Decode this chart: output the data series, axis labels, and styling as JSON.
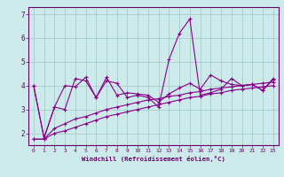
{
  "xlabel": "Windchill (Refroidissement éolien,°C)",
  "bg_color": "#cceaea",
  "grid_color": "#aacccc",
  "line_color": "#880088",
  "x": [
    0,
    1,
    2,
    3,
    4,
    5,
    6,
    7,
    8,
    9,
    10,
    11,
    12,
    13,
    14,
    15,
    16,
    17,
    18,
    19,
    20,
    21,
    22,
    23
  ],
  "series": [
    [
      4.0,
      1.8,
      3.1,
      3.0,
      4.3,
      4.2,
      3.5,
      4.2,
      4.1,
      3.5,
      3.6,
      3.5,
      3.1,
      5.1,
      6.2,
      6.8,
      3.6,
      3.7,
      3.85,
      4.3,
      4.0,
      4.05,
      3.8,
      4.3
    ],
    [
      4.0,
      1.8,
      3.1,
      4.0,
      3.95,
      4.35,
      3.5,
      4.35,
      3.6,
      3.7,
      3.65,
      3.6,
      3.3,
      3.65,
      3.9,
      4.1,
      3.85,
      4.45,
      4.2,
      4.05,
      4.0,
      4.05,
      3.8,
      4.25
    ],
    [
      1.75,
      1.75,
      2.2,
      2.4,
      2.6,
      2.7,
      2.85,
      3.0,
      3.1,
      3.2,
      3.3,
      3.4,
      3.45,
      3.55,
      3.6,
      3.7,
      3.75,
      3.85,
      3.9,
      3.95,
      4.0,
      4.05,
      4.1,
      4.15
    ],
    [
      1.75,
      1.75,
      2.0,
      2.1,
      2.25,
      2.4,
      2.55,
      2.7,
      2.8,
      2.9,
      3.0,
      3.1,
      3.2,
      3.3,
      3.4,
      3.5,
      3.55,
      3.65,
      3.7,
      3.8,
      3.85,
      3.9,
      3.95,
      4.0
    ]
  ],
  "ylim": [
    1.5,
    7.3
  ],
  "xlim": [
    -0.5,
    23.5
  ],
  "yticks": [
    2,
    3,
    4,
    5,
    6,
    7
  ],
  "xticks": [
    0,
    1,
    2,
    3,
    4,
    5,
    6,
    7,
    8,
    9,
    10,
    11,
    12,
    13,
    14,
    15,
    16,
    17,
    18,
    19,
    20,
    21,
    22,
    23
  ],
  "marker": "+",
  "markersize": 3.5,
  "linewidth": 0.8,
  "tick_fontsize": 4.5,
  "xlabel_fontsize": 5.2,
  "ylabel_fontsize": 5.5,
  "label_color": "#660066",
  "spine_color": "#660066"
}
